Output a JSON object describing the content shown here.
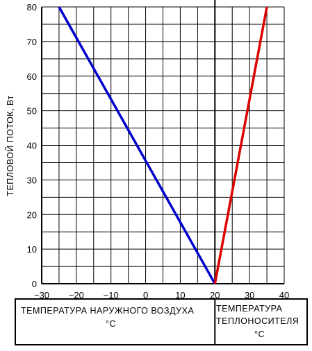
{
  "chart_data": {
    "type": "line",
    "ylabel": "ТЕПЛОВОЙ ПОТОК, Вт",
    "x_ticks": [
      "-30",
      "-20",
      "-10",
      "0",
      "10",
      "20",
      "30",
      "40"
    ],
    "y_ticks": [
      "0",
      "10",
      "20",
      "30",
      "40",
      "50",
      "60",
      "70",
      "80"
    ],
    "xlim": [
      -30,
      40
    ],
    "ylim": [
      0,
      80
    ],
    "grid": true,
    "series": [
      {
        "color": "#0000cc",
        "x": [
          -25,
          20
        ],
        "y": [
          80,
          0
        ]
      },
      {
        "color": "#dd0000",
        "x": [
          20,
          35
        ],
        "y": [
          0,
          80
        ]
      }
    ],
    "divider_x": 20,
    "caption_left": {
      "line1": "ТЕМПЕРАТУРА НАРУЖНОГО ВОЗДУХА",
      "unit": "°C"
    },
    "caption_right": {
      "line1": "ТЕМПЕРАТУРА",
      "line2": "ТЕПЛОНОСИТЕЛЯ",
      "unit": "°C"
    }
  }
}
